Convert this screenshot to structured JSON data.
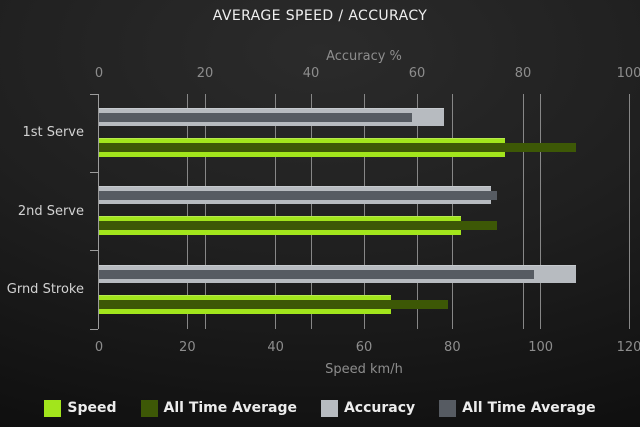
{
  "title": "AVERAGE SPEED / ACCURACY",
  "chart_data": {
    "type": "bar",
    "orientation": "horizontal",
    "grid": true,
    "legend_position": "bottom",
    "categories": [
      "1st Serve",
      "2nd Serve",
      "Grnd Stroke"
    ],
    "axes": {
      "top": {
        "label": "Accuracy %",
        "min": 0,
        "max": 100,
        "ticks": [
          0,
          20,
          40,
          60,
          80,
          100
        ]
      },
      "bottom": {
        "label": "Speed km/h",
        "min": 0,
        "max": 120,
        "ticks": [
          0,
          20,
          40,
          60,
          80,
          100,
          120
        ]
      }
    },
    "series": [
      {
        "name": "Speed",
        "axis": "bottom",
        "role": "outer",
        "color": "#a2e51c",
        "values": [
          92,
          82,
          66
        ]
      },
      {
        "name": "All Time Average",
        "axis": "bottom",
        "role": "inner",
        "color": "#3d5806",
        "values": [
          108,
          90,
          79
        ]
      },
      {
        "name": "Accuracy",
        "axis": "top",
        "role": "outer",
        "color": "#b7bbc0",
        "values": [
          65,
          74,
          90
        ]
      },
      {
        "name": "All Time Average",
        "axis": "top",
        "role": "inner",
        "color": "#565b62",
        "values": [
          59,
          75,
          82
        ]
      }
    ]
  }
}
